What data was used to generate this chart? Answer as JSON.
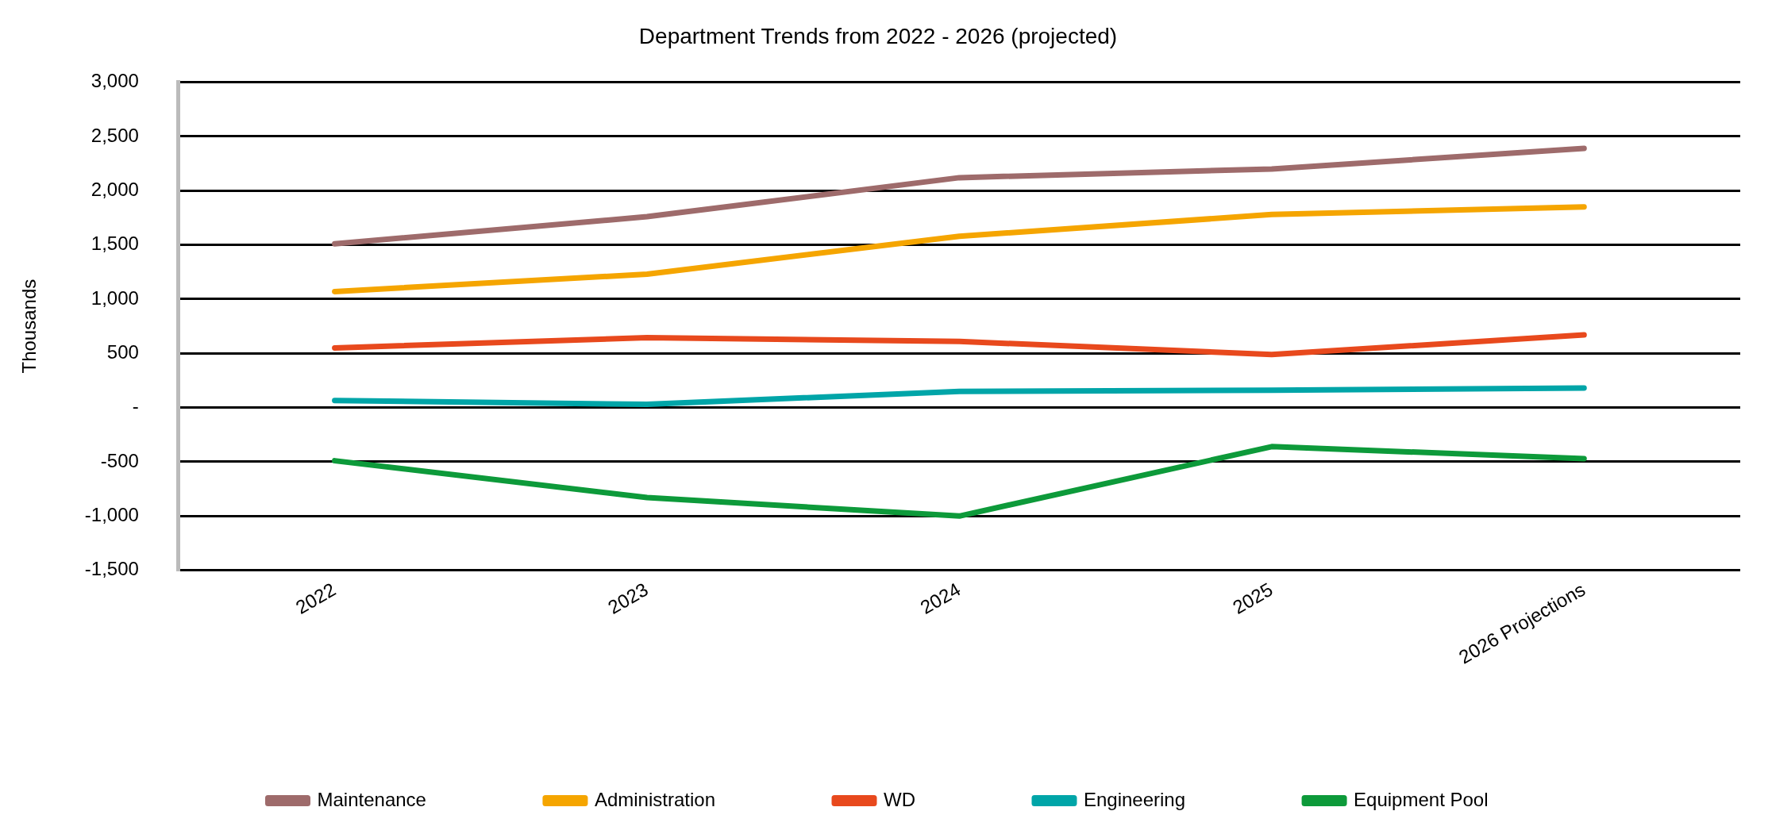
{
  "chart_data": {
    "type": "line",
    "title": "Department Trends from 2022 - 2026 (projected)",
    "ylabel": "Thousands",
    "categories": [
      "2022",
      "2023",
      "2024",
      "2025",
      "2026 Projections"
    ],
    "series": [
      {
        "name": "Maintenance",
        "color": "#9e6b6b",
        "values": [
          1510,
          1760,
          2120,
          2200,
          2390
        ]
      },
      {
        "name": "Administration",
        "color": "#f5a500",
        "values": [
          1070,
          1230,
          1580,
          1780,
          1850
        ]
      },
      {
        "name": "WD",
        "color": "#e8491d",
        "values": [
          550,
          645,
          610,
          490,
          670
        ]
      },
      {
        "name": "Engineering",
        "color": "#00a5a8",
        "values": [
          65,
          30,
          150,
          160,
          180
        ]
      },
      {
        "name": "Equipment Pool",
        "color": "#0d9a3a",
        "values": [
          -490,
          -830,
          -1000,
          -360,
          -470
        ]
      }
    ],
    "ylim": [
      -1500,
      3000
    ],
    "yticks": [
      {
        "value": -1500,
        "label": "-1,500"
      },
      {
        "value": -1000,
        "label": "-1,000"
      },
      -500,
      {
        "value": 0,
        "label": "-"
      },
      500,
      {
        "value": 1000,
        "label": "1,000"
      },
      {
        "value": 1500,
        "label": "1,500"
      },
      {
        "value": 2000,
        "label": "2,000"
      },
      {
        "value": 2500,
        "label": "2,500"
      },
      {
        "value": 3000,
        "label": "3,000"
      }
    ],
    "grid": "y",
    "legend": "bottom",
    "marker": "none",
    "line_style": "solid"
  }
}
